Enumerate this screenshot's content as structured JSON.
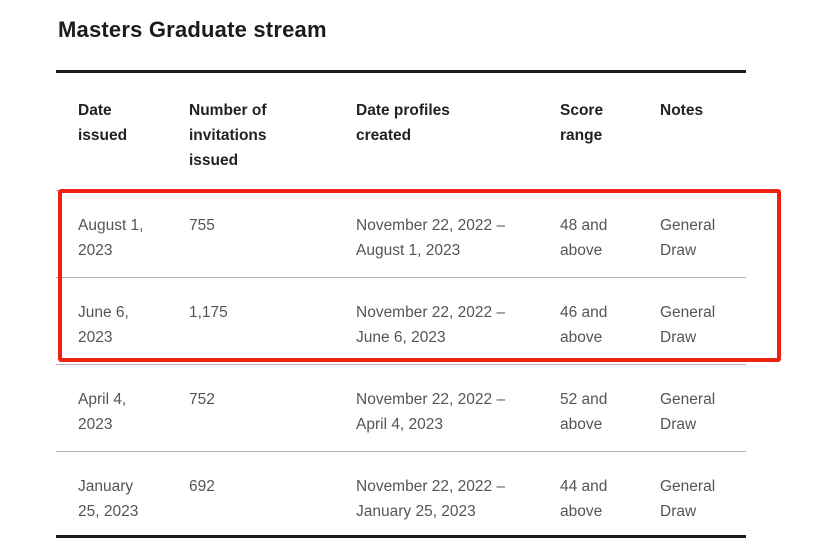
{
  "page": {
    "heading": "Masters Graduate stream"
  },
  "table": {
    "columns": [
      {
        "id": "date_issued",
        "label": "Date\nissued"
      },
      {
        "id": "invitations_issued",
        "label": "Number of\ninvitations\nissued"
      },
      {
        "id": "profiles_created",
        "label": "Date profiles\ncreated"
      },
      {
        "id": "score_range",
        "label": "Score\nrange"
      },
      {
        "id": "notes",
        "label": "Notes"
      }
    ],
    "rows": [
      {
        "date_issued": "August 1,\n2023",
        "invitations_issued": "755",
        "profiles_created": "November 22, 2022 –\nAugust 1, 2023",
        "score_range": "48 and\nabove",
        "notes": "General\nDraw",
        "highlighted": true
      },
      {
        "date_issued": "June 6,\n2023",
        "invitations_issued": "1,175",
        "profiles_created": "November 22, 2022 –\nJune 6, 2023",
        "score_range": "46 and\nabove",
        "notes": "General\nDraw",
        "highlighted": true
      },
      {
        "date_issued": "April 4,\n2023",
        "invitations_issued": "752",
        "profiles_created": "November 22, 2022 –\nApril 4, 2023",
        "score_range": "52 and\nabove",
        "notes": "General\nDraw",
        "highlighted": false
      },
      {
        "date_issued": "January\n25, 2023",
        "invitations_issued": "692",
        "profiles_created": "November 22, 2022 –\nJanuary 25, 2023",
        "score_range": "44 and\nabove",
        "notes": "General\nDraw",
        "highlighted": false
      }
    ]
  },
  "annotation": {
    "highlight_border_color": "#ee2214"
  },
  "colors": {
    "heading_text": "#1b1b1b",
    "header_text": "#222222",
    "body_text": "#555555",
    "rule_heavy": "#1b1b1b",
    "rule_light": "#b2b2b2"
  }
}
